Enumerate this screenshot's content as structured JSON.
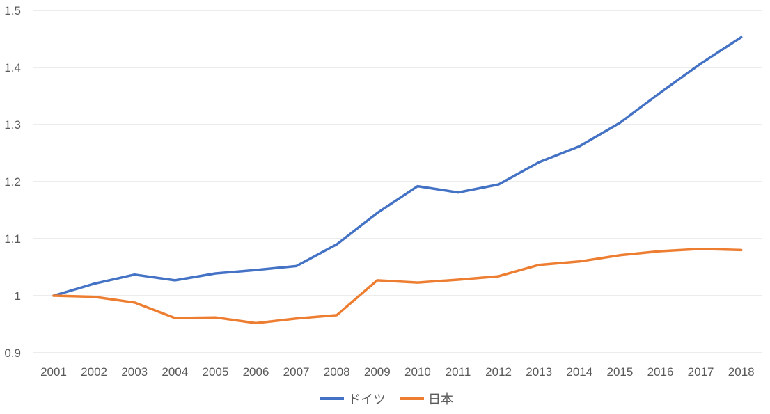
{
  "chart_data": {
    "type": "line",
    "title": "",
    "xlabel": "",
    "ylabel": "",
    "categories": [
      "2001",
      "2002",
      "2003",
      "2004",
      "2005",
      "2006",
      "2007",
      "2008",
      "2009",
      "2010",
      "2011",
      "2012",
      "2013",
      "2014",
      "2015",
      "2016",
      "2017",
      "2018"
    ],
    "ylim": [
      0.9,
      1.5
    ],
    "yticks": [
      "0.9",
      "1",
      "1.1",
      "1.2",
      "1.3",
      "1.4",
      "1.5"
    ],
    "grid": true,
    "legend_position": "bottom",
    "series": [
      {
        "name": "ドイツ",
        "color": "#4472c4",
        "values": [
          1.0,
          1.021,
          1.037,
          1.027,
          1.039,
          1.045,
          1.052,
          1.09,
          1.145,
          1.192,
          1.181,
          1.195,
          1.234,
          1.262,
          1.303,
          1.356,
          1.407,
          1.453
        ]
      },
      {
        "name": "日本",
        "color": "#ed7d31",
        "values": [
          1.0,
          0.998,
          0.988,
          0.961,
          0.962,
          0.952,
          0.96,
          0.966,
          1.027,
          1.023,
          1.028,
          1.034,
          1.054,
          1.06,
          1.071,
          1.078,
          1.082,
          1.08
        ]
      }
    ]
  }
}
